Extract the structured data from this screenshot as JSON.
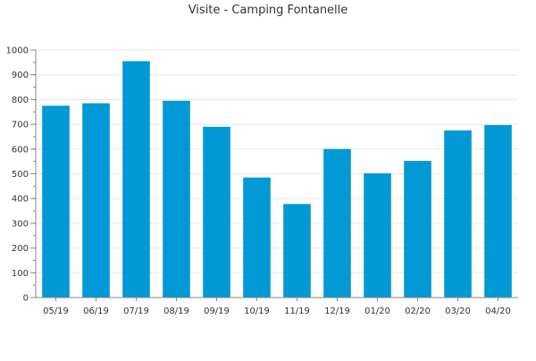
{
  "chart_data": {
    "type": "bar",
    "title": "Visite - Camping Fontanelle",
    "xlabel": "",
    "ylabel": "",
    "categories": [
      "05/19",
      "06/19",
      "07/19",
      "08/19",
      "09/19",
      "10/19",
      "11/19",
      "12/19",
      "01/20",
      "02/20",
      "03/20",
      "04/20"
    ],
    "values": [
      775,
      785,
      955,
      795,
      690,
      485,
      378,
      600,
      502,
      552,
      675,
      697
    ],
    "ylim": [
      0,
      1000
    ],
    "yticks": [
      0,
      100,
      200,
      300,
      400,
      500,
      600,
      700,
      800,
      900,
      1000
    ],
    "grid": true,
    "legend": "none",
    "colors": {
      "bar": "#0099d6",
      "grid": "#e6e6e6",
      "axis": "#888888",
      "text": "#333333"
    }
  }
}
